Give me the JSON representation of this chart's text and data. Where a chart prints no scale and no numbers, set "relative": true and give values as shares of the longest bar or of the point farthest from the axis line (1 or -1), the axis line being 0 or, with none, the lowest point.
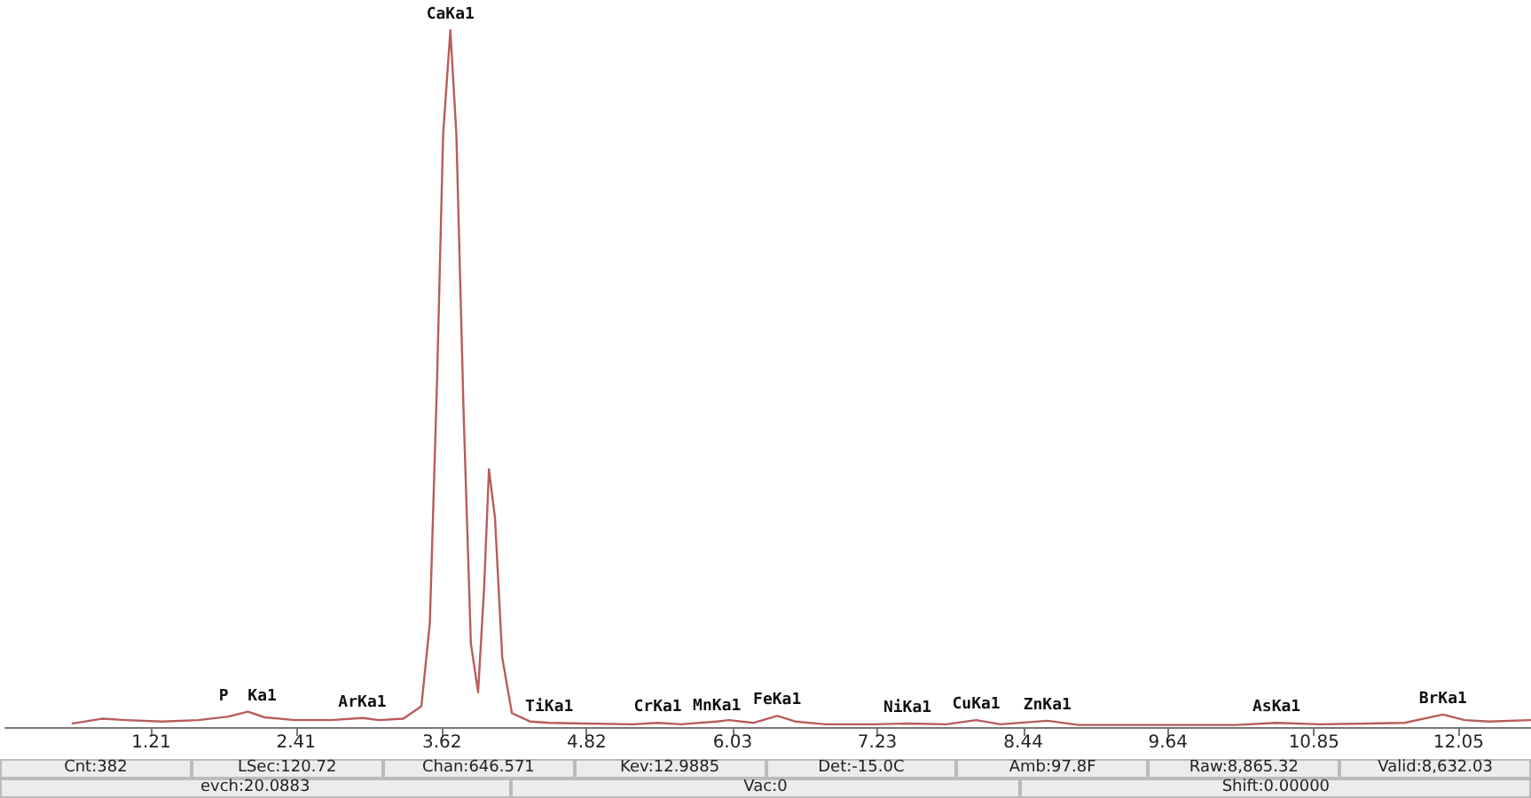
{
  "chart_data": {
    "type": "line",
    "relative": true,
    "grid": false,
    "marker": "none",
    "line_style": "solid",
    "tick_labels": "x",
    "xlim": [
      0,
      12.65
    ],
    "xticks": [
      1.21,
      2.41,
      3.62,
      4.82,
      6.03,
      7.23,
      8.44,
      9.64,
      10.85,
      12.05
    ],
    "series": [
      {
        "color": "#b85c5c",
        "x": [
          0.55,
          0.8,
          1.0,
          1.3,
          1.6,
          1.85,
          2.01,
          2.15,
          2.4,
          2.7,
          2.96,
          3.1,
          3.3,
          3.45,
          3.52,
          3.58,
          3.63,
          3.69,
          3.74,
          3.8,
          3.86,
          3.92,
          3.97,
          4.01,
          4.06,
          4.12,
          4.2,
          4.35,
          4.51,
          4.8,
          5.2,
          5.41,
          5.6,
          5.9,
          6.0,
          6.2,
          6.4,
          6.55,
          6.8,
          7.2,
          7.48,
          7.8,
          8.05,
          8.25,
          8.64,
          8.9,
          9.3,
          9.7,
          10.2,
          10.54,
          10.9,
          11.3,
          11.6,
          11.92,
          12.1,
          12.3,
          12.65
        ],
        "values": [
          0.005,
          0.012,
          0.01,
          0.008,
          0.01,
          0.015,
          0.022,
          0.014,
          0.01,
          0.01,
          0.013,
          0.01,
          0.012,
          0.03,
          0.15,
          0.5,
          0.85,
          1.0,
          0.85,
          0.45,
          0.12,
          0.05,
          0.2,
          0.37,
          0.3,
          0.1,
          0.02,
          0.008,
          0.006,
          0.005,
          0.004,
          0.006,
          0.004,
          0.008,
          0.01,
          0.006,
          0.016,
          0.008,
          0.004,
          0.004,
          0.005,
          0.004,
          0.01,
          0.004,
          0.009,
          0.003,
          0.003,
          0.003,
          0.003,
          0.006,
          0.004,
          0.005,
          0.006,
          0.018,
          0.01,
          0.008,
          0.01
        ]
      }
    ],
    "annotations": [
      {
        "text": "P  Ka1",
        "x": 2.01,
        "y": 0.022
      },
      {
        "text": "ArKa1",
        "x": 2.96,
        "y": 0.013
      },
      {
        "text": "CaKa1",
        "x": 3.69,
        "y": 1.0
      },
      {
        "text": "TiKa1",
        "x": 4.51,
        "y": 0.006
      },
      {
        "text": "CrKa1",
        "x": 5.41,
        "y": 0.006
      },
      {
        "text": "MnKa1",
        "x": 5.9,
        "y": 0.008
      },
      {
        "text": "FeKa1",
        "x": 6.4,
        "y": 0.016
      },
      {
        "text": "NiKa1",
        "x": 7.48,
        "y": 0.005
      },
      {
        "text": "CuKa1",
        "x": 8.05,
        "y": 0.01
      },
      {
        "text": "ZnKa1",
        "x": 8.64,
        "y": 0.009
      },
      {
        "text": "AsKa1",
        "x": 10.54,
        "y": 0.006
      },
      {
        "text": "BrKa1",
        "x": 11.92,
        "y": 0.018
      },
      "Cnt:382",
      "LSec:120.72",
      "Chan:646.571",
      "Kev:12.9885",
      "Det:-15.0C",
      "Amb:97.8F",
      "Raw:8,865.32",
      "Valid:8,632.03",
      "evch:20.0883",
      "Vac:0",
      "Shift:0.00000"
    ]
  }
}
